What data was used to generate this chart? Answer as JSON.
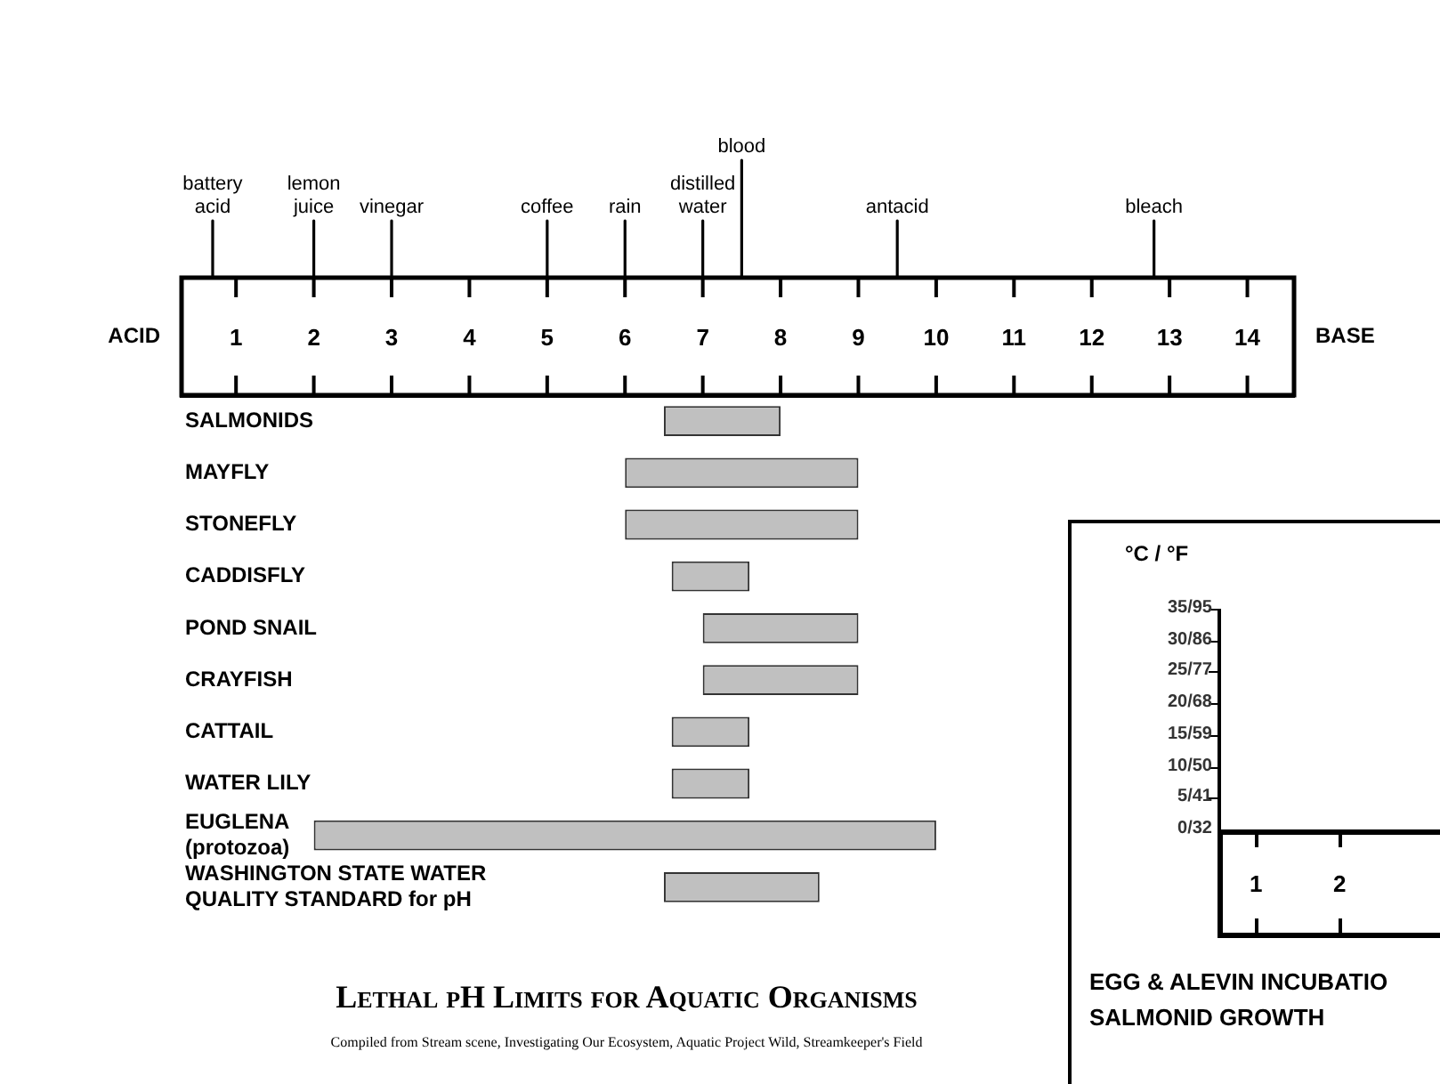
{
  "chart_data": [
    {
      "type": "bar",
      "orientation": "horizontal",
      "title": "Lethal pH Limits for Aquatic Organisms",
      "categories": [
        "SALMONIDS",
        "MAYFLY",
        "STONEFLY",
        "CADDISFLY",
        "POND SNAIL",
        "CRAYFISH",
        "CATTAIL",
        "WATER LILY",
        "EUGLENA\n(protozoa)",
        "WASHINGTON STATE WATER\nQUALITY STANDARD for pH"
      ],
      "base": [
        6.5,
        6,
        6,
        6.6,
        7,
        7,
        6.6,
        6.6,
        2,
        6.5
      ],
      "values": [
        1.5,
        3,
        3,
        1,
        2,
        2,
        1,
        1,
        8,
        2
      ],
      "color": "#c0c0c0",
      "xlim": [
        0.3,
        14.6
      ],
      "xticks": [
        1,
        2,
        3,
        4,
        5,
        6,
        7,
        8,
        9,
        10,
        11,
        12,
        13,
        14
      ],
      "ref_lines": [
        {
          "axis": "x",
          "value": 0.7,
          "label": "battery\nacid"
        },
        {
          "axis": "x",
          "value": 2,
          "label": "lemon\njuice"
        },
        {
          "axis": "x",
          "value": 3,
          "label": "vinegar"
        },
        {
          "axis": "x",
          "value": 5,
          "label": "coffee"
        },
        {
          "axis": "x",
          "value": 6,
          "label": "rain"
        },
        {
          "axis": "x",
          "value": 7,
          "label": "distilled\nwater"
        },
        {
          "axis": "x",
          "value": 7.5,
          "label": "blood"
        },
        {
          "axis": "x",
          "value": 9.5,
          "label": "antacid"
        },
        {
          "axis": "x",
          "value": 12.8,
          "label": "bleach"
        }
      ],
      "annotations": [
        "ACID",
        "BASE",
        "Compiled from Stream scene, Investigating Our Ecosystem, Aquatic Project Wild, Streamkeeper's Field"
      ]
    },
    {
      "type": "other",
      "ylabel": "°C / °F",
      "annotations": [
        "35/95",
        "30/86",
        "25/77",
        "20/68",
        "15/59",
        "10/50",
        "5/41",
        "0/32",
        "1",
        "2",
        "EGG & ALEVIN INCUBATIO",
        "SALMONID GROWTH"
      ]
    }
  ]
}
